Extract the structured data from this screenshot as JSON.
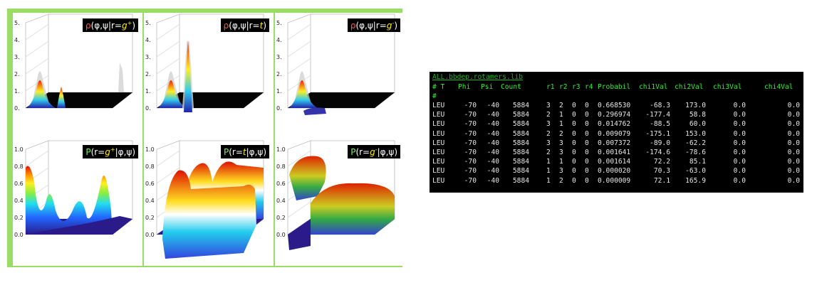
{
  "figure": {
    "panels": [
      {
        "id": "rho-gplus",
        "prefix": "ρ",
        "head": "(φ,ψ|r=",
        "state": "g",
        "sup": "+",
        "tail": ")",
        "z_ticks": [
          "0.",
          "1.",
          "2.",
          "3.",
          "4.",
          "5."
        ]
      },
      {
        "id": "rho-t",
        "prefix": "ρ",
        "head": "(φ,ψ|r=",
        "state": "t",
        "sup": "",
        "tail": ")",
        "z_ticks": [
          "0.",
          "1.",
          "2.",
          "3.",
          "4.",
          "5."
        ]
      },
      {
        "id": "rho-gminus",
        "prefix": "ρ",
        "head": "(φ,ψ|r=",
        "state": "g",
        "sup": "-",
        "tail": ")",
        "z_ticks": [
          "0.",
          "1.",
          "2.",
          "3.",
          "4.",
          "5."
        ]
      },
      {
        "id": "P-gplus",
        "prefix": "P",
        "head": "(r=",
        "state": "g",
        "sup": "+",
        "tail": "|φ,ψ)",
        "z_ticks": [
          "0.0",
          "0.2",
          "0.4",
          "0.6",
          "0.8",
          "1.0"
        ]
      },
      {
        "id": "P-t",
        "prefix": "P",
        "head": "(r=",
        "state": "t",
        "sup": "",
        "tail": "|φ,ψ)",
        "z_ticks": [
          "0.0",
          "0.2",
          "0.4",
          "0.6",
          "0.8",
          "1.0"
        ]
      },
      {
        "id": "P-gminus",
        "prefix": "P",
        "head": "(r=",
        "state": "g",
        "sup": "-",
        "tail": "|φ,ψ)",
        "z_ticks": [
          "0.0",
          "0.2",
          "0.4",
          "0.6",
          "0.8",
          "1.0"
        ]
      }
    ]
  },
  "terminal": {
    "filename": "ALL.bbdep.rotamers.lib",
    "headers": [
      "# T",
      "Phi",
      "Psi",
      "Count",
      "r1",
      "r2",
      "r3",
      "r4",
      "Probabil",
      "chi1Val",
      "chi2Val",
      "chi3Val",
      "chi4Val"
    ],
    "comment": "#",
    "rows": [
      [
        "LEU",
        "-70",
        "-40",
        "5884",
        "3",
        "2",
        "0",
        "0",
        "0.668530",
        "-68.3",
        "173.0",
        "0.0",
        "0.0"
      ],
      [
        "LEU",
        "-70",
        "-40",
        "5884",
        "2",
        "1",
        "0",
        "0",
        "0.296974",
        "-177.4",
        "58.8",
        "0.0",
        "0.0"
      ],
      [
        "LEU",
        "-70",
        "-40",
        "5884",
        "3",
        "1",
        "0",
        "0",
        "0.014762",
        "-88.5",
        "60.0",
        "0.0",
        "0.0"
      ],
      [
        "LEU",
        "-70",
        "-40",
        "5884",
        "2",
        "2",
        "0",
        "0",
        "0.009079",
        "-175.1",
        "153.0",
        "0.0",
        "0.0"
      ],
      [
        "LEU",
        "-70",
        "-40",
        "5884",
        "3",
        "3",
        "0",
        "0",
        "0.007372",
        "-89.0",
        "-62.2",
        "0.0",
        "0.0"
      ],
      [
        "LEU",
        "-70",
        "-40",
        "5884",
        "2",
        "3",
        "0",
        "0",
        "0.001641",
        "-174.6",
        "-78.6",
        "0.0",
        "0.0"
      ],
      [
        "LEU",
        "-70",
        "-40",
        "5884",
        "1",
        "1",
        "0",
        "0",
        "0.001614",
        "72.2",
        "85.1",
        "0.0",
        "0.0"
      ],
      [
        "LEU",
        "-70",
        "-40",
        "5884",
        "1",
        "3",
        "0",
        "0",
        "0.000020",
        "70.3",
        "-63.0",
        "0.0",
        "0.0"
      ],
      [
        "LEU",
        "-70",
        "-40",
        "5884",
        "1",
        "2",
        "0",
        "0",
        "0.000009",
        "72.1",
        "165.9",
        "0.0",
        "0.0"
      ]
    ]
  },
  "colors": {
    "figure_bg": "#99dd66",
    "terminal_bg": "#000000",
    "terminal_header": "#33ee33",
    "terminal_text": "#e6e6e6",
    "filename": "#22b022"
  }
}
